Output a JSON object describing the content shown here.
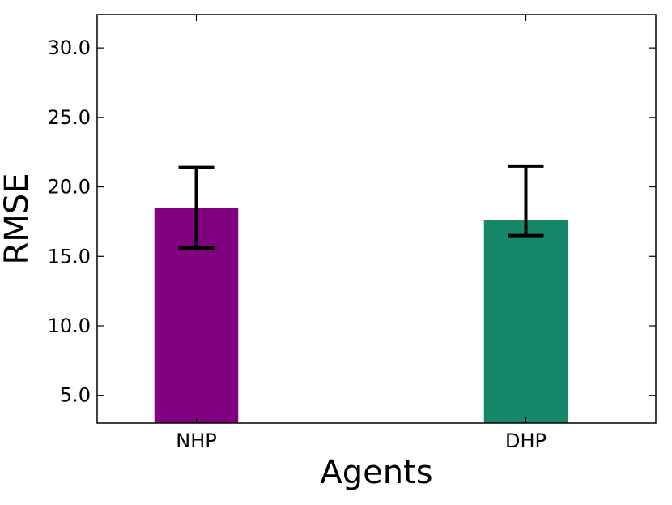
{
  "chart_data": {
    "type": "bar",
    "title": "",
    "xlabel": "Agents",
    "ylabel": "RMSE",
    "categories": [
      "NHP",
      "DHP"
    ],
    "values": [
      18.5,
      17.6
    ],
    "error_low": [
      15.6,
      16.5
    ],
    "error_high": [
      21.4,
      21.5
    ],
    "colors": [
      "#800080",
      "#178769"
    ],
    "ylim": [
      3.0,
      32.4
    ],
    "yticks": [
      5.0,
      10.0,
      15.0,
      20.0,
      25.0,
      30.0
    ],
    "ytick_labels": [
      "5.0",
      "10.0",
      "15.0",
      "20.0",
      "25.0",
      "30.0"
    ],
    "grid": false,
    "legend": "none"
  }
}
